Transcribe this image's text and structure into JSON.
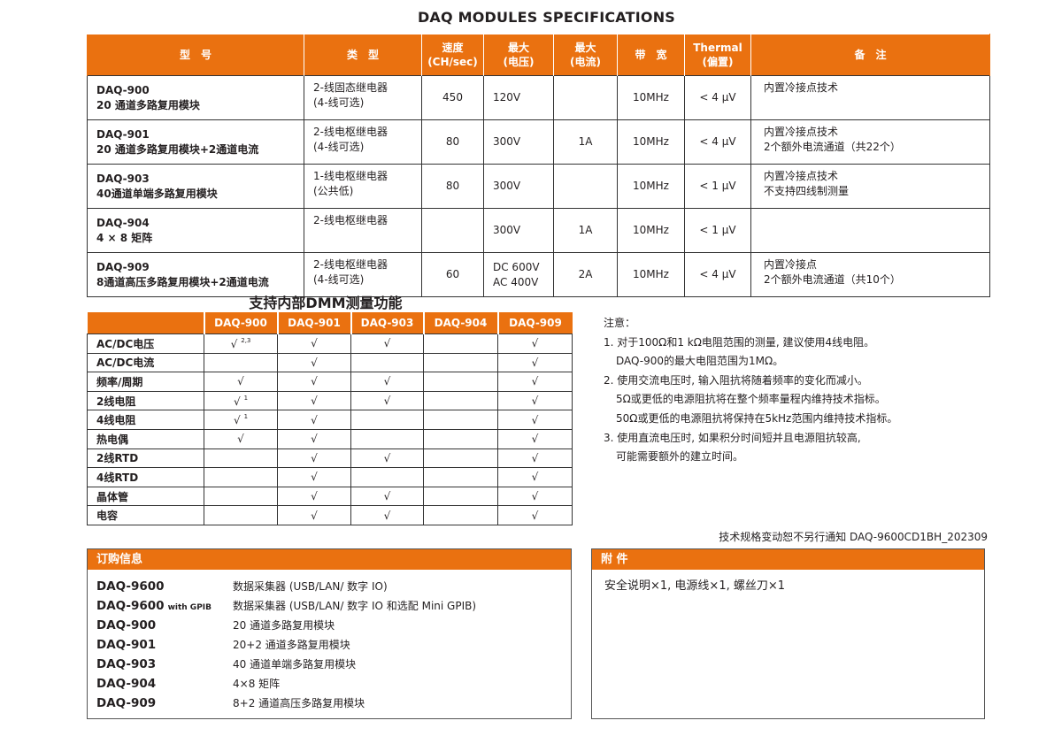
{
  "title": "DAQ MODULES SPECIFICATIONS",
  "accent_color": "#EA7110",
  "spec_table": {
    "headers": [
      "型　号",
      "类　型",
      "速度\n(CH/sec)",
      "最大\n(电压)",
      "最大\n(电流)",
      "带　宽",
      "Thermal\n(偏置)",
      "备　注"
    ],
    "rows": [
      {
        "model": "DAQ-900",
        "desc": "20 通道多路复用模块",
        "type": "2-线固态继电器\n(4-线可选)",
        "speed": "450",
        "voltage": "120V",
        "current": "",
        "bandwidth": "10MHz",
        "thermal": "< 4 μV",
        "remarks": "内置冷接点技术"
      },
      {
        "model": "DAQ-901",
        "desc": "20  通道多路复用模块+2通道电流",
        "type": "2-线电枢继电器\n(4-线可选)",
        "speed": "80",
        "voltage": "300V",
        "current": "1A",
        "bandwidth": "10MHz",
        "thermal": "< 4 μV",
        "remarks": "内置冷接点技术\n2个额外电流通道（共22个）"
      },
      {
        "model": "DAQ-903",
        "desc": "40通道单端多路复用模块",
        "type": "1-线电枢继电器\n(公共低)",
        "speed": "80",
        "voltage": "300V",
        "current": "",
        "bandwidth": "10MHz",
        "thermal": "< 1 μV",
        "remarks": "内置冷接点技术\n不支持四线制测量"
      },
      {
        "model": "DAQ-904",
        "desc": "4 × 8 矩阵",
        "type": "2-线电枢继电器",
        "speed": "",
        "voltage": "300V",
        "current": "1A",
        "bandwidth": "10MHz",
        "thermal": "< 1 μV",
        "remarks": ""
      },
      {
        "model": "DAQ-909",
        "desc": "8通道高压多路复用模块+2通道电流",
        "type": "2-线电枢继电器\n(4-线可选)",
        "speed": "60",
        "voltage": "DC 600V\nAC 400V",
        "current": "2A",
        "bandwidth": "10MHz",
        "thermal": "< 4 μV",
        "remarks": "内置冷接点\n2个额外电流通道（共10个）"
      }
    ]
  },
  "dmm": {
    "title": "支持内部DMM测量功能",
    "columns": [
      "",
      "DAQ-900",
      "DAQ-901",
      "DAQ-903",
      "DAQ-904",
      "DAQ-909"
    ],
    "rows": [
      {
        "label": "AC/DC电压",
        "cells": [
          {
            "v": "√",
            "sup": "2,3"
          },
          {
            "v": "√"
          },
          {
            "v": "√"
          },
          {
            "v": ""
          },
          {
            "v": "√"
          }
        ]
      },
      {
        "label": "AC/DC电流",
        "cells": [
          {
            "v": ""
          },
          {
            "v": "√"
          },
          {
            "v": ""
          },
          {
            "v": ""
          },
          {
            "v": "√"
          }
        ]
      },
      {
        "label": "频率/周期",
        "cells": [
          {
            "v": "√"
          },
          {
            "v": "√"
          },
          {
            "v": "√"
          },
          {
            "v": ""
          },
          {
            "v": "√"
          }
        ]
      },
      {
        "label": "2线电阻",
        "cells": [
          {
            "v": "√",
            "sup": "1"
          },
          {
            "v": "√"
          },
          {
            "v": "√"
          },
          {
            "v": ""
          },
          {
            "v": "√"
          }
        ]
      },
      {
        "label": "4线电阻",
        "cells": [
          {
            "v": "√",
            "sup": "1"
          },
          {
            "v": "√"
          },
          {
            "v": ""
          },
          {
            "v": ""
          },
          {
            "v": "√"
          }
        ]
      },
      {
        "label": "热电偶",
        "cells": [
          {
            "v": "√"
          },
          {
            "v": "√"
          },
          {
            "v": ""
          },
          {
            "v": ""
          },
          {
            "v": "√"
          }
        ]
      },
      {
        "label": "2线RTD",
        "cells": [
          {
            "v": ""
          },
          {
            "v": "√"
          },
          {
            "v": "√"
          },
          {
            "v": ""
          },
          {
            "v": "√"
          }
        ]
      },
      {
        "label": "4线RTD",
        "cells": [
          {
            "v": ""
          },
          {
            "v": "√"
          },
          {
            "v": ""
          },
          {
            "v": ""
          },
          {
            "v": "√"
          }
        ]
      },
      {
        "label": "晶体管",
        "cells": [
          {
            "v": ""
          },
          {
            "v": "√"
          },
          {
            "v": "√"
          },
          {
            "v": ""
          },
          {
            "v": "√"
          }
        ]
      },
      {
        "label": "电容",
        "cells": [
          {
            "v": ""
          },
          {
            "v": "√"
          },
          {
            "v": "√"
          },
          {
            "v": ""
          },
          {
            "v": "√"
          }
        ]
      }
    ]
  },
  "notes": {
    "heading": "注意：",
    "lines": [
      {
        "text": "1. 对于100Ω和1 kΩ电阻范围的测量, 建议使用4线电阻。",
        "indent": false
      },
      {
        "text": "DAQ-900的最大电阻范围为1MΩ。",
        "indent": true
      },
      {
        "text": "2. 使用交流电压时, 输入阻抗将随着频率的变化而减小。",
        "indent": false
      },
      {
        "text": "5Ω或更低的电源阻抗将在整个频率量程内维持技术指标。",
        "indent": true
      },
      {
        "text": "50Ω或更低的电源阻抗将保持在5kHz范围内维持技术指标。",
        "indent": true
      },
      {
        "text": "3. 使用直流电压时, 如果积分时间短并且电源阻抗较高,",
        "indent": false
      },
      {
        "text": "可能需要额外的建立时间。",
        "indent": true
      }
    ]
  },
  "footer_note": "技术规格变动恕不另行通知  DAQ-9600CD1BH_202309",
  "order": {
    "heading": "订购信息",
    "items": [
      {
        "model": "DAQ-9600",
        "suffix": "",
        "desc": "数据采集器 (USB/LAN/ 数字 IO)"
      },
      {
        "model": "DAQ-9600",
        "suffix": "with GPIB",
        "desc": "数据采集器 (USB/LAN/ 数字 IO 和选配 Mini GPIB)"
      },
      {
        "model": "DAQ-900",
        "suffix": "",
        "desc": "20 通道多路复用模块"
      },
      {
        "model": "DAQ-901",
        "suffix": "",
        "desc": "20+2 通道多路复用模块"
      },
      {
        "model": "DAQ-903",
        "suffix": "",
        "desc": "40 通道单端多路复用模块"
      },
      {
        "model": "DAQ-904",
        "suffix": "",
        "desc": "4×8 矩阵"
      },
      {
        "model": "DAQ-909",
        "suffix": "",
        "desc": "8+2 通道高压多路复用模块"
      }
    ]
  },
  "accessories": {
    "heading": "附 件",
    "text": "安全说明×1, 电源线×1, 螺丝刀×1"
  }
}
